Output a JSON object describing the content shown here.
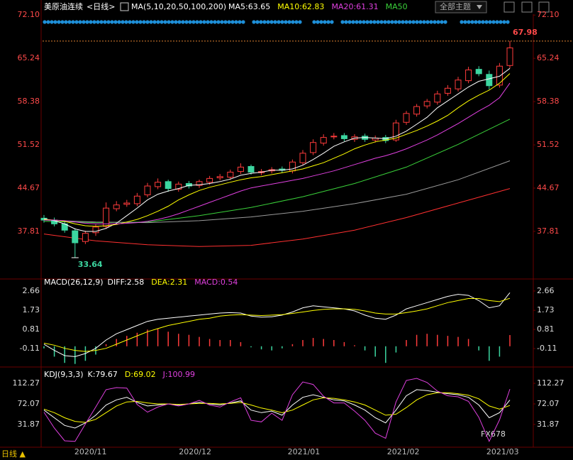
{
  "header": {
    "symbol": "美原油连续",
    "period": "<日线>",
    "ma_params": "MA(5,10,20,50,100,200)",
    "theme": "全部主题",
    "bottom_period": "日线 ▲",
    "watermark": "FX678"
  },
  "chart_data": [
    {
      "type": "candlestick",
      "up_color": "#ff3b3b",
      "down_color": "#3cd6a0",
      "legend": [
        {
          "text": "MA5:63.65",
          "color": "#ffffff"
        },
        {
          "text": "MA10:62.83",
          "color": "#ffff00"
        },
        {
          "text": "MA20:61.31",
          "color": "#e040e0"
        },
        {
          "text": "MA50",
          "color": "#3ad13a"
        }
      ],
      "open": [
        39.9,
        39.6,
        39.0,
        37.9,
        36.2,
        37.6,
        38.6,
        41.4,
        42.1,
        42.2,
        43.6,
        44.9,
        45.7,
        44.5,
        45.4,
        45.1,
        45.6,
        46.3,
        46.4,
        47.3,
        48.1,
        47.1,
        47.4,
        47.7,
        47.4,
        48.7,
        50.3,
        51.8,
        52.8,
        53.0,
        52.4,
        52.9,
        52.3,
        52.7,
        52.3,
        55.1,
        56.4,
        57.7,
        58.3,
        59.7,
        60.4,
        61.7,
        63.5,
        62.7,
        61.0,
        64.1
      ],
      "high": [
        40.4,
        40.0,
        39.4,
        38.3,
        37.9,
        38.9,
        42.4,
        42.6,
        42.8,
        43.9,
        45.5,
        46.2,
        46.0,
        45.7,
        45.8,
        46.0,
        46.6,
        46.9,
        47.6,
        48.6,
        48.4,
        47.7,
        48.0,
        48.1,
        49.2,
        50.7,
        52.4,
        53.2,
        53.4,
        53.4,
        53.2,
        53.3,
        53.0,
        53.1,
        55.5,
        56.9,
        58.0,
        58.8,
        60.1,
        61.0,
        62.3,
        63.9,
        64.0,
        63.3,
        64.5,
        67.98
      ],
      "low": [
        39.2,
        38.6,
        37.6,
        33.64,
        35.8,
        37.1,
        38.2,
        41.0,
        41.7,
        41.8,
        43.2,
        44.5,
        44.1,
        44.1,
        44.6,
        44.7,
        45.2,
        45.9,
        46.0,
        46.9,
        46.8,
        46.7,
        47.0,
        47.1,
        47.0,
        48.3,
        49.9,
        51.4,
        52.4,
        52.1,
        52.0,
        52.0,
        51.9,
        51.8,
        52.0,
        54.7,
        56.0,
        57.3,
        57.9,
        59.3,
        60.0,
        61.3,
        62.4,
        60.3,
        60.6,
        63.7
      ],
      "close": [
        39.6,
        39.0,
        38.0,
        36.0,
        37.5,
        38.5,
        41.5,
        42.0,
        42.3,
        43.4,
        45.0,
        45.6,
        44.6,
        45.3,
        45.0,
        45.7,
        46.2,
        46.5,
        47.2,
        48.0,
        47.2,
        47.3,
        47.6,
        47.5,
        48.8,
        50.2,
        51.9,
        52.7,
        52.9,
        52.5,
        52.8,
        52.4,
        52.6,
        52.2,
        55.0,
        56.5,
        57.6,
        58.4,
        59.6,
        60.5,
        61.8,
        63.4,
        62.8,
        60.9,
        64.0,
        66.9
      ],
      "series": [
        {
          "name": "MA5",
          "color": "#ffffff",
          "values": [
            39.8,
            39.5,
            39.0,
            38.2,
            37.8,
            37.8,
            38.3,
            39.1,
            40.3,
            41.5,
            42.8,
            43.7,
            44.2,
            44.6,
            45.1,
            45.2,
            45.4,
            45.7,
            46.1,
            46.7,
            47.0,
            47.2,
            47.5,
            47.5,
            47.7,
            48.3,
            49.2,
            50.2,
            51.3,
            52.0,
            52.6,
            52.7,
            52.6,
            52.5,
            52.9,
            53.7,
            54.8,
            55.9,
            57.4,
            58.5,
            59.6,
            60.7,
            61.6,
            62.0,
            62.4,
            63.65
          ]
        },
        {
          "name": "MA10",
          "color": "#ffff00",
          "values": [
            39.7,
            39.6,
            39.4,
            39.0,
            38.7,
            38.6,
            38.7,
            38.9,
            39.3,
            39.7,
            40.3,
            41.0,
            41.8,
            42.8,
            43.6,
            44.3,
            44.8,
            45.2,
            45.6,
            46.0,
            46.3,
            46.5,
            46.8,
            47.1,
            47.4,
            47.7,
            48.2,
            48.7,
            49.4,
            50.1,
            50.9,
            51.5,
            52.0,
            52.3,
            52.6,
            53.2,
            53.8,
            54.5,
            55.3,
            56.2,
            57.4,
            58.5,
            59.4,
            60.2,
            61.3,
            62.83
          ]
        },
        {
          "name": "MA20",
          "color": "#e040e0",
          "values": [
            39.6,
            39.6,
            39.5,
            39.3,
            39.1,
            39.0,
            39.0,
            39.0,
            39.1,
            39.2,
            39.4,
            39.7,
            40.1,
            40.6,
            41.2,
            41.8,
            42.4,
            43.0,
            43.6,
            44.2,
            44.7,
            45.0,
            45.3,
            45.6,
            45.9,
            46.2,
            46.6,
            47.0,
            47.4,
            47.9,
            48.4,
            48.9,
            49.4,
            49.8,
            50.3,
            50.9,
            51.6,
            52.3,
            53.1,
            54.0,
            54.9,
            55.9,
            56.9,
            57.8,
            59.0,
            61.31
          ]
        },
        {
          "name": "MA50",
          "color": "#3ad13a",
          "x": [
            0,
            5,
            10,
            15,
            20,
            25,
            30,
            35,
            40,
            45
          ],
          "values": [
            39.4,
            39.2,
            39.3,
            40.3,
            41.6,
            43.3,
            45.4,
            48.0,
            51.6,
            55.6
          ]
        },
        {
          "name": "MA100",
          "color": "#9a9a9a",
          "x": [
            0,
            5,
            10,
            15,
            20,
            25,
            30,
            35,
            40,
            45
          ],
          "values": [
            39.6,
            39.3,
            39.2,
            39.5,
            40.1,
            41.0,
            42.2,
            43.7,
            46.0,
            49.0
          ]
        },
        {
          "name": "MA200",
          "color": "#ff3030",
          "x": [
            0,
            5,
            10,
            15,
            20,
            25,
            30,
            35,
            40,
            45
          ],
          "values": [
            37.4,
            36.3,
            35.7,
            35.4,
            35.6,
            36.6,
            38.0,
            40.0,
            42.3,
            44.6
          ]
        }
      ],
      "ylim": [
        30.6,
        72.8
      ],
      "yticks": [
        {
          "value": 72.1,
          "label": "72.10"
        },
        65.24,
        58.38,
        51.52,
        44.67,
        37.81
      ],
      "xticks": [
        {
          "value": 4.5,
          "label": "2020/11"
        },
        {
          "value": 14.6,
          "label": "2020/12"
        },
        {
          "value": 25.1,
          "label": "2021/01"
        },
        {
          "value": 34.7,
          "label": "2021/02"
        },
        {
          "value": 44.3,
          "label": "2021/03"
        }
      ]
    },
    {
      "type": "macd",
      "title": "MACD(26,12,9)",
      "up_color": "#ff3b3b",
      "down_color": "#3cd6a0",
      "legend": [
        {
          "text": "DIFF:2.58",
          "color": "#ffffff"
        },
        {
          "text": "DEA:2.31",
          "color": "#ffff00"
        },
        {
          "text": "MACD:0.54",
          "color": "#e040e0"
        }
      ],
      "values": [
        -0.1,
        -0.5,
        -0.8,
        -0.85,
        -0.7,
        -0.4,
        0.1,
        0.35,
        0.5,
        0.65,
        0.8,
        0.85,
        0.7,
        0.6,
        0.55,
        0.45,
        0.35,
        0.3,
        0.3,
        0.2,
        -0.05,
        -0.15,
        -0.2,
        -0.1,
        0.1,
        0.3,
        0.4,
        0.35,
        0.3,
        0.2,
        0.05,
        -0.2,
        -0.5,
        -0.8,
        -0.3,
        0.3,
        0.55,
        0.6,
        0.55,
        0.5,
        0.45,
        0.35,
        -0.2,
        -0.7,
        -0.5,
        0.54
      ],
      "series": [
        {
          "name": "DIFF",
          "color": "#ffffff",
          "values": [
            0.1,
            -0.2,
            -0.45,
            -0.5,
            -0.35,
            -0.1,
            0.3,
            0.6,
            0.8,
            1.0,
            1.2,
            1.3,
            1.35,
            1.4,
            1.45,
            1.5,
            1.55,
            1.6,
            1.62,
            1.6,
            1.45,
            1.4,
            1.42,
            1.5,
            1.65,
            1.85,
            1.95,
            1.9,
            1.85,
            1.8,
            1.7,
            1.5,
            1.35,
            1.3,
            1.5,
            1.8,
            1.95,
            2.1,
            2.25,
            2.4,
            2.5,
            2.45,
            2.2,
            1.85,
            1.95,
            2.58
          ]
        },
        {
          "name": "DEA",
          "color": "#ffff00",
          "values": [
            0.15,
            0.05,
            -0.1,
            -0.2,
            -0.25,
            -0.2,
            -0.1,
            0.1,
            0.3,
            0.5,
            0.7,
            0.85,
            1.0,
            1.1,
            1.2,
            1.3,
            1.35,
            1.45,
            1.5,
            1.52,
            1.5,
            1.48,
            1.5,
            1.52,
            1.58,
            1.65,
            1.72,
            1.78,
            1.8,
            1.8,
            1.78,
            1.7,
            1.6,
            1.55,
            1.55,
            1.62,
            1.7,
            1.8,
            1.95,
            2.1,
            2.2,
            2.3,
            2.3,
            2.2,
            2.15,
            2.31
          ]
        }
      ],
      "ylim": [
        -0.93,
        3.17
      ],
      "yticks": [
        2.66,
        1.73,
        0.81,
        -0.11
      ]
    },
    {
      "type": "line",
      "title": "KDJ(9,3,3)",
      "legend": [
        {
          "text": "K:79.67",
          "color": "#ffffff"
        },
        {
          "text": "D:69.02",
          "color": "#ffff00"
        },
        {
          "text": "J:100.99",
          "color": "#e040e0"
        }
      ],
      "series": [
        {
          "name": "K",
          "color": "#ffffff",
          "values": [
            60,
            45,
            30,
            25,
            35,
            50,
            70,
            80,
            85,
            75,
            68,
            70,
            72,
            70,
            72,
            75,
            72,
            70,
            74,
            78,
            60,
            55,
            58,
            50,
            70,
            85,
            90,
            85,
            80,
            78,
            70,
            60,
            45,
            35,
            60,
            88,
            100,
            98,
            95,
            92,
            90,
            85,
            70,
            45,
            55,
            79.67
          ]
        },
        {
          "name": "D",
          "color": "#ffff00",
          "values": [
            62,
            55,
            45,
            38,
            36,
            42,
            55,
            68,
            76,
            77,
            74,
            72,
            72,
            71,
            72,
            73,
            73,
            72,
            73,
            75,
            70,
            64,
            60,
            55,
            60,
            70,
            80,
            84,
            83,
            80,
            76,
            70,
            60,
            50,
            52,
            65,
            80,
            90,
            94,
            94,
            92,
            89,
            82,
            68,
            62,
            69.02
          ]
        },
        {
          "name": "J",
          "color": "#e040e0",
          "values": [
            56,
            25,
            0,
            -1,
            33,
            66,
            100,
            104,
            103,
            71,
            56,
            66,
            72,
            68,
            72,
            79,
            70,
            66,
            76,
            84,
            40,
            37,
            54,
            40,
            90,
            115,
            110,
            87,
            74,
            74,
            58,
            40,
            15,
            5,
            76,
            118,
            122,
            114,
            97,
            88,
            86,
            77,
            46,
            -1,
            41,
            100.99
          ]
        }
      ],
      "ylim": [
        -12.5,
        140
      ],
      "yticks": [
        112.27,
        72.07,
        31.87
      ]
    }
  ]
}
